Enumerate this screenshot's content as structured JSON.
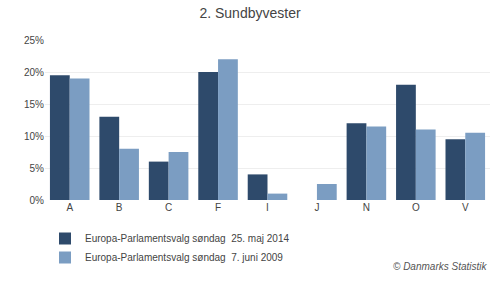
{
  "chart_data": {
    "type": "bar",
    "title": "2. Sundbyvester",
    "categories": [
      "A",
      "B",
      "C",
      "F",
      "I",
      "J",
      "N",
      "O",
      "V"
    ],
    "series": [
      {
        "name": "Europa-Parlamentsvalg søndag  25. maj 2014",
        "color": "#2E4A6B",
        "values": [
          19.5,
          13.0,
          6.0,
          20.0,
          4.0,
          0.0,
          12.0,
          18.0,
          9.5
        ]
      },
      {
        "name": "Europa-Parlamentsvalg søndag  7. juni 2009",
        "color": "#7B9DC2",
        "values": [
          19.0,
          8.0,
          7.5,
          22.0,
          1.0,
          2.5,
          11.5,
          11.0,
          10.5
        ]
      }
    ],
    "ylim": [
      0,
      25
    ],
    "yticks": [
      {
        "value": 0,
        "label": "0%"
      },
      {
        "value": 5,
        "label": "5%"
      },
      {
        "value": 10,
        "label": "10%"
      },
      {
        "value": 15,
        "label": "15%"
      },
      {
        "value": 20,
        "label": "20%"
      },
      {
        "value": 25,
        "label": "25%"
      }
    ],
    "grid": true,
    "legend": "bottom",
    "annotations": [
      "© Danmarks Statistik"
    ]
  }
}
